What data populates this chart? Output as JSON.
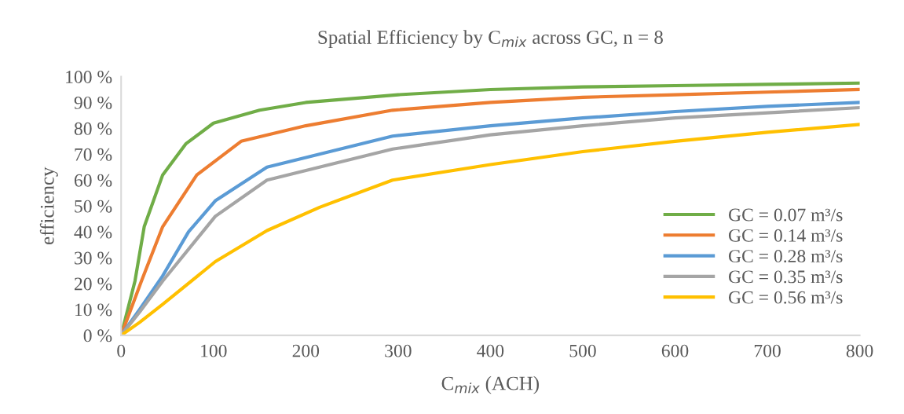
{
  "chart_data": {
    "type": "line",
    "title": "Spatial Efficiency by C$_{mix}$ across GC, n = 8",
    "xlabel": "C$_{mix}$ (ACH)",
    "ylabel": "efficiency",
    "xlim": [
      0,
      800
    ],
    "xticks": [
      0,
      100,
      200,
      300,
      400,
      500,
      600,
      700,
      800
    ],
    "ylim": [
      0,
      100
    ],
    "yticks": [
      {
        "value": 0,
        "label": "0 %"
      },
      {
        "value": 10,
        "label": "10 %"
      },
      {
        "value": 20,
        "label": "20 %"
      },
      {
        "value": 30,
        "label": "30 %"
      },
      {
        "value": 40,
        "label": "40 %"
      },
      {
        "value": 50,
        "label": "50 %"
      },
      {
        "value": 60,
        "label": "60 %"
      },
      {
        "value": 70,
        "label": "70 %"
      },
      {
        "value": 80,
        "label": "80 %"
      },
      {
        "value": 90,
        "label": "90 %"
      },
      {
        "value": 100,
        "label": "100 %"
      }
    ],
    "grid": false,
    "legend": "right",
    "marker": "none",
    "line_style": "solid",
    "series": [
      {
        "name": "GC = 0.07 m³/s",
        "color": "#70ad47",
        "x": [
          0,
          15,
          25,
          45,
          70,
          100,
          150,
          200,
          300,
          400,
          500,
          600,
          700,
          800
        ],
        "values": [
          0,
          21,
          42,
          62,
          74,
          82,
          87,
          90,
          93,
          95,
          96,
          96.5,
          97,
          97.5
        ]
      },
      {
        "name": "GC = 0.14 m³/s",
        "color": "#ed7d31",
        "x": [
          0,
          22,
          45,
          82,
          130,
          200,
          294,
          400,
          500,
          600,
          700,
          800
        ],
        "values": [
          0,
          21,
          42,
          62,
          75,
          81,
          87,
          90,
          92,
          93,
          94,
          95
        ]
      },
      {
        "name": "GC = 0.28 m³/s",
        "color": "#5b9bd5",
        "x": [
          0,
          20,
          45,
          73,
          102,
          158,
          294,
          400,
          500,
          600,
          700,
          800
        ],
        "values": [
          0,
          10,
          23,
          40,
          52,
          65,
          77,
          81,
          84,
          86.5,
          88.5,
          90
        ]
      },
      {
        "name": "GC = 0.35 m³/s",
        "color": "#a5a5a5",
        "x": [
          0,
          20,
          45,
          102,
          158,
          294,
          400,
          500,
          600,
          700,
          800
        ],
        "values": [
          0,
          9,
          21,
          46,
          60,
          72,
          77.5,
          81,
          84,
          86,
          88
        ]
      },
      {
        "name": "GC = 0.56 m³/s",
        "color": "#ffc000",
        "x": [
          0,
          20,
          45,
          102,
          158,
          215,
          294,
          400,
          500,
          600,
          700,
          800
        ],
        "values": [
          0,
          5,
          12,
          28.5,
          40.5,
          49.5,
          60,
          66,
          71,
          75,
          78.5,
          81.5
        ]
      }
    ]
  }
}
